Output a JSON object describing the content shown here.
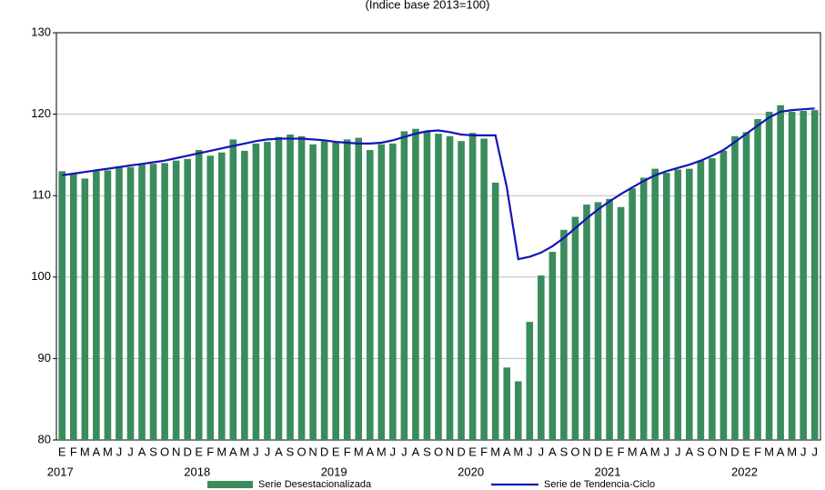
{
  "chart_data": {
    "type": "bar_line",
    "subtitle": "(Índice base 2013=100)",
    "categories": [
      "E",
      "F",
      "M",
      "A",
      "M",
      "J",
      "J",
      "A",
      "S",
      "O",
      "N",
      "D",
      "E",
      "F",
      "M",
      "A",
      "M",
      "J",
      "J",
      "A",
      "S",
      "O",
      "N",
      "D",
      "E",
      "F",
      "M",
      "A",
      "M",
      "J",
      "J",
      "A",
      "S",
      "O",
      "N",
      "D",
      "E",
      "F",
      "M",
      "A",
      "M",
      "J",
      "J",
      "A",
      "S",
      "O",
      "N",
      "D",
      "E",
      "F",
      "M",
      "A",
      "M",
      "J",
      "J",
      "A",
      "S",
      "O",
      "N",
      "D",
      "E",
      "F",
      "M",
      "A",
      "M",
      "J",
      "J"
    ],
    "years": [
      "2017",
      "2018",
      "2019",
      "2020",
      "2021",
      "2022"
    ],
    "series": [
      {
        "name": "Serie Desestacionalizada",
        "kind": "bar",
        "color": "#3a8c5c",
        "values": [
          113.0,
          112.7,
          112.1,
          113.0,
          113.1,
          113.6,
          113.5,
          113.8,
          113.9,
          114.0,
          114.3,
          114.5,
          115.6,
          114.9,
          115.3,
          116.9,
          115.5,
          116.4,
          116.6,
          117.2,
          117.5,
          117.3,
          116.3,
          116.7,
          116.5,
          116.9,
          117.1,
          115.6,
          116.3,
          116.4,
          117.9,
          118.2,
          117.9,
          117.6,
          117.3,
          116.7,
          117.7,
          117.0,
          111.6,
          88.9,
          87.2,
          94.5,
          100.2,
          103.1,
          105.8,
          107.4,
          108.9,
          109.2,
          109.6,
          108.6,
          110.9,
          112.2,
          113.3,
          112.8,
          113.2,
          113.3,
          114.3,
          114.6,
          115.5,
          117.3,
          117.8,
          119.4,
          120.3,
          121.1,
          120.3,
          120.4,
          120.5
        ]
      },
      {
        "name": "Serie de Tendencia-Ciclo",
        "kind": "line",
        "color": "#1414b8",
        "values": [
          112.5,
          112.7,
          112.9,
          113.1,
          113.3,
          113.5,
          113.7,
          113.9,
          114.1,
          114.3,
          114.6,
          114.9,
          115.2,
          115.5,
          115.8,
          116.1,
          116.4,
          116.7,
          116.9,
          117.0,
          117.0,
          117.0,
          116.9,
          116.8,
          116.6,
          116.5,
          116.4,
          116.4,
          116.5,
          116.8,
          117.2,
          117.6,
          117.9,
          118.0,
          117.8,
          117.5,
          117.4,
          117.4,
          117.4,
          111.0,
          102.2,
          102.5,
          103.0,
          103.8,
          104.8,
          106.0,
          107.2,
          108.3,
          109.3,
          110.2,
          111.0,
          111.8,
          112.5,
          113.0,
          113.4,
          113.8,
          114.3,
          114.9,
          115.6,
          116.6,
          117.6,
          118.6,
          119.6,
          120.3,
          120.5,
          120.6,
          120.7
        ]
      }
    ],
    "ylim": [
      80,
      130
    ],
    "yticks": [
      80,
      90,
      100,
      110,
      120,
      130
    ],
    "grid": true
  }
}
